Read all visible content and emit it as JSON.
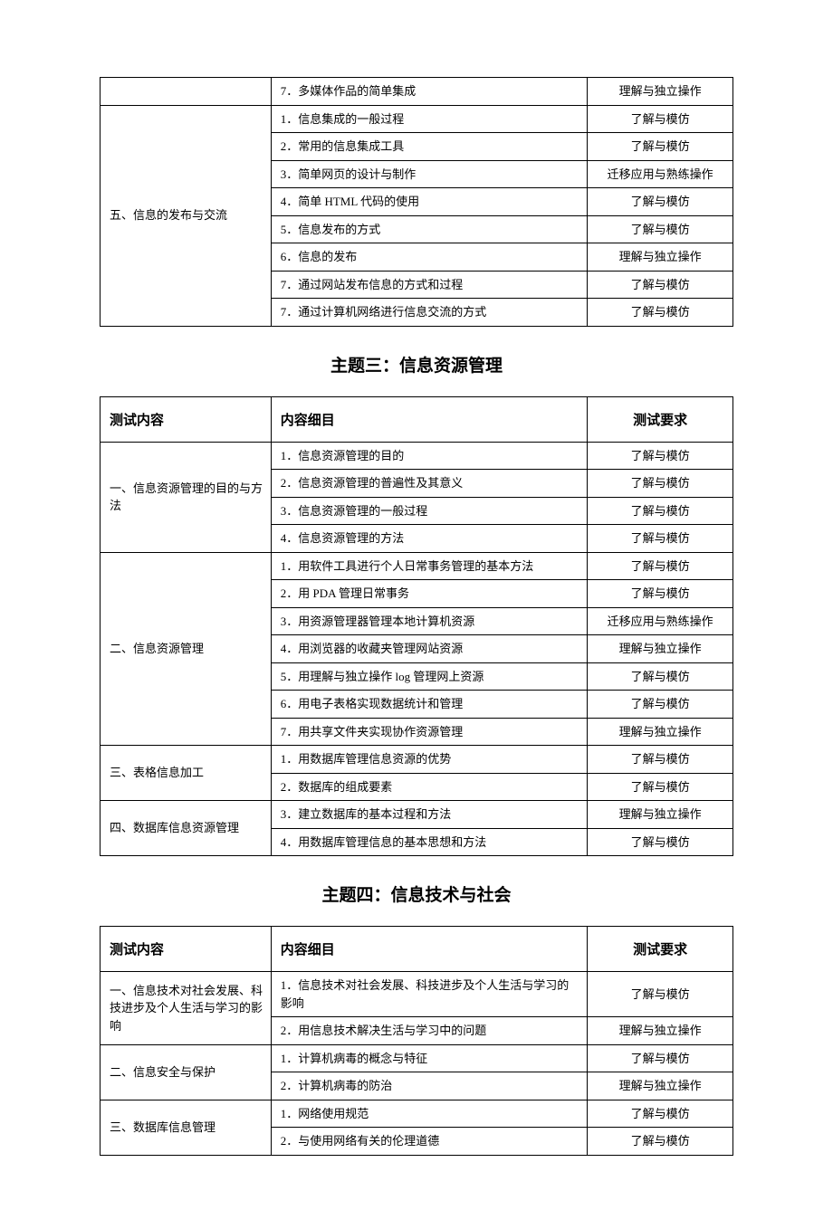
{
  "table1": {
    "rows": [
      {
        "c1": "",
        "c2": "7．多媒体作品的简单集成",
        "c3": "理解与独立操作"
      },
      {
        "c1": "五、信息的发布与交流",
        "rowspan": 8,
        "c2": "1．信息集成的一般过程",
        "c3": "了解与模仿"
      },
      {
        "c2": "2．常用的信息集成工具",
        "c3": "了解与模仿"
      },
      {
        "c2": "3．简单网页的设计与制作",
        "c3": "迁移应用与熟练操作"
      },
      {
        "c2": "4．简单 HTML 代码的使用",
        "c3": "了解与模仿"
      },
      {
        "c2": "5．信息发布的方式",
        "c3": "了解与模仿"
      },
      {
        "c2": "6．信息的发布",
        "c3": "理解与独立操作"
      },
      {
        "c2": "7．通过网站发布信息的方式和过程",
        "c3": "了解与模仿"
      },
      {
        "c2": "7．通过计算机网络进行信息交流的方式",
        "c3": "了解与模仿"
      }
    ]
  },
  "section3_title": "主题三：信息资源管理",
  "table2": {
    "headers": [
      "测试内容",
      "内容细目",
      "测试要求"
    ],
    "rows": [
      {
        "c1": "一、信息资源管理的目的与方法",
        "rowspan": 4,
        "c2": "1．信息资源管理的目的",
        "c3": "了解与模仿"
      },
      {
        "c2": "2．信息资源管理的普遍性及其意义",
        "c3": "了解与模仿"
      },
      {
        "c2": "3．信息资源管理的一般过程",
        "c3": "了解与模仿"
      },
      {
        "c2": "4．信息资源管理的方法",
        "c3": "了解与模仿"
      },
      {
        "c1": "二、信息资源管理",
        "rowspan": 7,
        "c2": "1．用软件工具进行个人日常事务管理的基本方法",
        "c3": "了解与模仿"
      },
      {
        "c2": "2．用 PDA 管理日常事务",
        "c3": "了解与模仿"
      },
      {
        "c2": "3．用资源管理器管理本地计算机资源",
        "c3": "迁移应用与熟练操作"
      },
      {
        "c2": "4．用浏览器的收藏夹管理网站资源",
        "c3": "理解与独立操作"
      },
      {
        "c2": "5．用理解与独立操作 log 管理网上资源",
        "c3": "了解与模仿"
      },
      {
        "c2": "6．用电子表格实现数据统计和管理",
        "c3": "了解与模仿"
      },
      {
        "c2": "7．用共享文件夹实现协作资源管理",
        "c3": "理解与独立操作"
      },
      {
        "c1": "三、表格信息加工",
        "rowspan": 2,
        "c2": "1．用数据库管理信息资源的优势",
        "c3": "了解与模仿"
      },
      {
        "c2": "2．数据库的组成要素",
        "c3": "了解与模仿"
      },
      {
        "c1": "四、数据库信息资源管理",
        "rowspan": 2,
        "c2": "3．建立数据库的基本过程和方法",
        "c3": "理解与独立操作"
      },
      {
        "c2": "4．用数据库管理信息的基本思想和方法",
        "c3": "了解与模仿"
      }
    ]
  },
  "section4_title": "主题四：信息技术与社会",
  "table3": {
    "headers": [
      "测试内容",
      "内容细目",
      "测试要求"
    ],
    "rows": [
      {
        "c1": "一、信息技术对社会发展、科技进步及个人生活与学习的影响",
        "rowspan": 2,
        "c2": "1．信息技术对社会发展、科技进步及个人生活与学习的影响",
        "c3": "了解与模仿"
      },
      {
        "c2": "2．用信息技术解决生活与学习中的问题",
        "c3": "理解与独立操作"
      },
      {
        "c1": "二、信息安全与保护",
        "rowspan": 2,
        "c2": "1．计算机病毒的概念与特征",
        "c3": "了解与模仿"
      },
      {
        "c2": "2．计算机病毒的防治",
        "c3": "理解与独立操作"
      },
      {
        "c1": "三、数据库信息管理",
        "rowspan": 2,
        "c2": "1．网络使用规范",
        "c3": "了解与模仿"
      },
      {
        "c2": "2．与使用网络有关的伦理道德",
        "c3": "了解与模仿"
      }
    ]
  }
}
